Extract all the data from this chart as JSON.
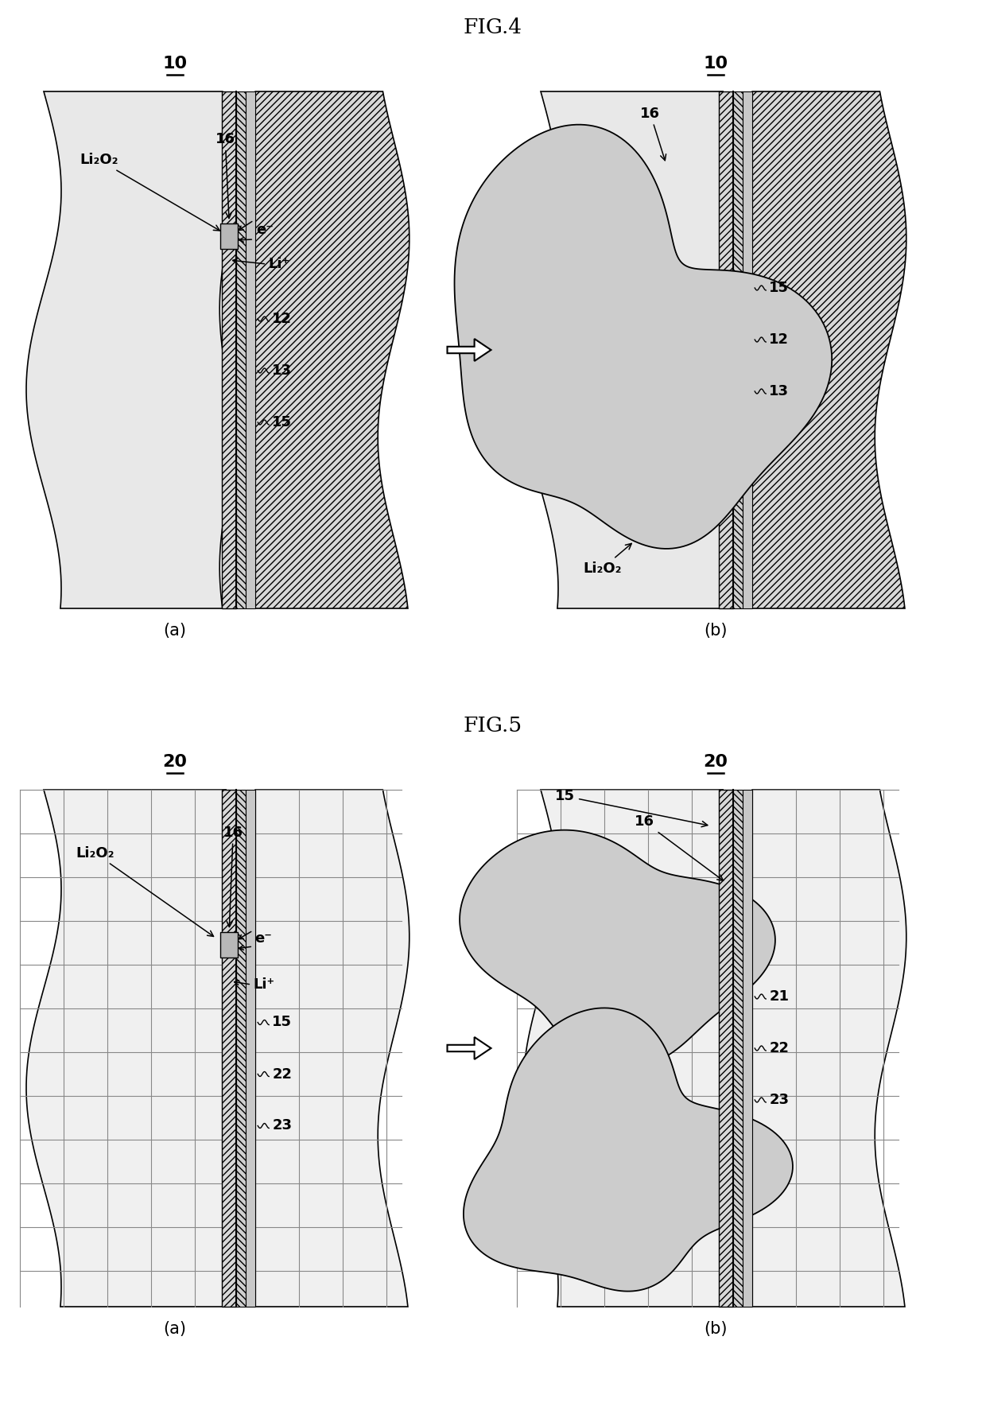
{
  "fig4_title": "FIG.4",
  "fig5_title": "FIG.5",
  "bg_color": "#ffffff",
  "line_color": "#000000",
  "text_color": "#000000",
  "porous_fill": "#e8e8e8",
  "hatch_fill": "#d0d0d0",
  "blob_fill": "#cccccc",
  "layer_thin_fill": "#c0c0c0",
  "labels": {
    "Li2O2": "Li₂O₂",
    "Li_plus": "Li⁺",
    "e_minus": "e⁻"
  }
}
